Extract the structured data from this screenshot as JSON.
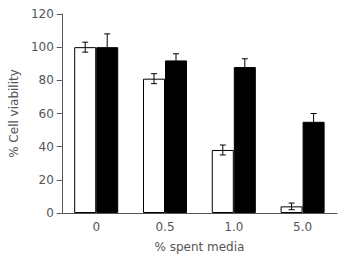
{
  "chart_data": {
    "type": "bar",
    "xlabel": "% spent media",
    "ylabel": "% Cell viability",
    "categories": [
      "0",
      "0.5",
      "1.0",
      "5.0"
    ],
    "series": [
      {
        "color": "#ffffff",
        "values": [
          100,
          81,
          38,
          4
        ],
        "errors": [
          3,
          3,
          3,
          2
        ]
      },
      {
        "color": "#000000",
        "values": [
          100,
          92,
          88,
          55
        ],
        "errors": [
          8,
          4,
          5,
          5
        ]
      }
    ],
    "ylim": [
      0,
      120
    ],
    "yticks": [
      0,
      20,
      40,
      60,
      80,
      100,
      120
    ],
    "grid": false
  }
}
